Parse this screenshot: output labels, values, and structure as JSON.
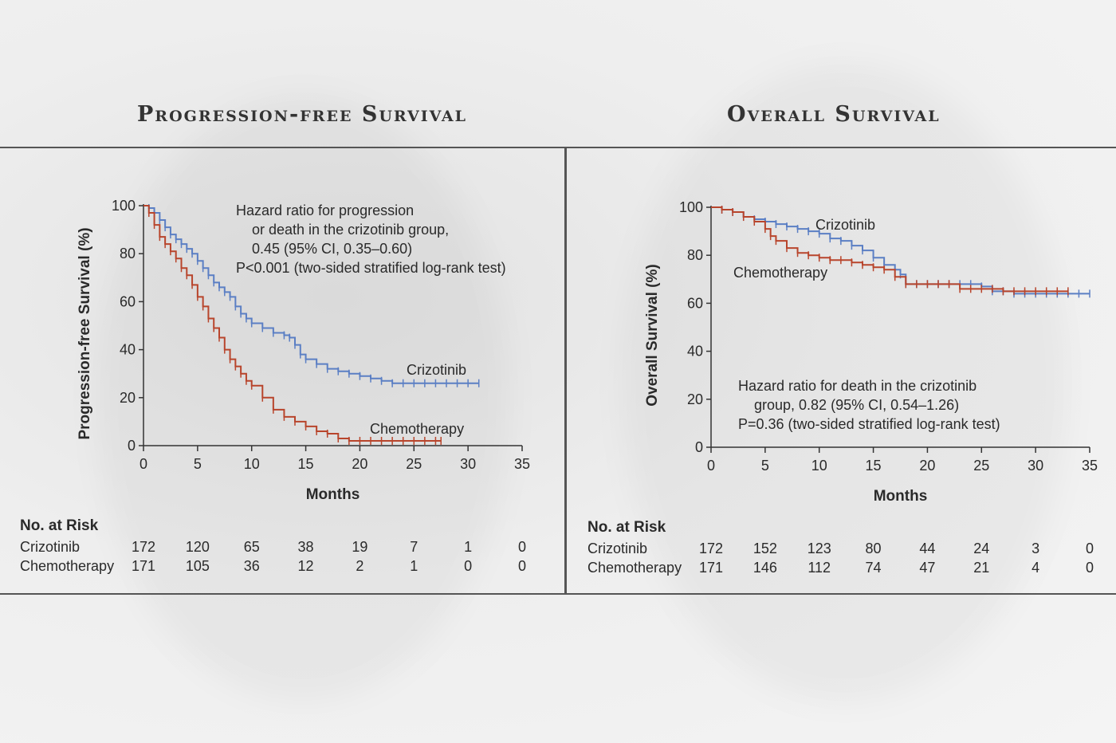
{
  "panels": {
    "left_title": "Progression-free Survival",
    "right_title": "Overall Survival"
  },
  "colors": {
    "crizotinib": "#5b7fc4",
    "chemotherapy": "#b8452c",
    "axis": "#333333"
  },
  "chart_data": [
    {
      "type": "line",
      "title": "Progression-free Survival",
      "xlabel": "Months",
      "ylabel": "Progression-free Survival (%)",
      "xlim": [
        0,
        35
      ],
      "ylim": [
        0,
        100
      ],
      "xticks": [
        0,
        5,
        10,
        15,
        20,
        25,
        30,
        35
      ],
      "yticks": [
        0,
        20,
        40,
        60,
        80,
        100
      ],
      "annotation": [
        "Hazard ratio for progression",
        "or death in the crizotinib group,",
        "0.45 (95% CI, 0.35–0.60)",
        "P<0.001 (two-sided stratified log-rank test)"
      ],
      "series": [
        {
          "name": "Crizotinib",
          "x": [
            0,
            0.5,
            1,
            1.5,
            2,
            2.5,
            3,
            3.5,
            4,
            4.5,
            5,
            5.5,
            6,
            6.5,
            7,
            7.5,
            8,
            8.5,
            9,
            9.5,
            10,
            11,
            12,
            13,
            13.5,
            14,
            14.5,
            15,
            16,
            17,
            18,
            19,
            20,
            21,
            22,
            23,
            24,
            25,
            26,
            27,
            28,
            29,
            30,
            31
          ],
          "values": [
            100,
            99,
            97,
            94,
            91,
            88,
            86,
            84,
            82,
            80,
            77,
            74,
            71,
            68,
            66,
            64,
            62,
            58,
            55,
            53,
            51,
            49,
            47,
            46,
            45,
            42,
            38,
            36,
            34,
            32,
            31,
            30,
            29,
            28,
            27,
            26,
            26,
            26,
            26,
            26,
            26,
            26,
            26,
            26
          ]
        },
        {
          "name": "Chemotherapy",
          "x": [
            0,
            0.5,
            1,
            1.5,
            2,
            2.5,
            3,
            3.5,
            4,
            4.5,
            5,
            5.5,
            6,
            6.5,
            7,
            7.5,
            8,
            8.5,
            9,
            9.5,
            10,
            11,
            12,
            13,
            14,
            15,
            16,
            17,
            18,
            19,
            20,
            21,
            22,
            23,
            24,
            25,
            26,
            27,
            27.5
          ],
          "values": [
            100,
            97,
            92,
            87,
            84,
            81,
            78,
            74,
            71,
            67,
            62,
            58,
            53,
            49,
            45,
            40,
            36,
            33,
            30,
            27,
            25,
            20,
            15,
            12,
            10,
            8,
            6,
            5,
            3,
            2,
            2,
            2,
            2,
            2,
            2,
            2,
            2,
            2,
            2
          ]
        }
      ],
      "series_labels": [
        "Crizotinib",
        "Chemotherapy"
      ],
      "at_risk": {
        "header": "No. at Risk",
        "rows": [
          {
            "label": "Crizotinib",
            "values": [
              "172",
              "120",
              "65",
              "38",
              "19",
              "7",
              "1",
              "0"
            ]
          },
          {
            "label": "Chemotherapy",
            "values": [
              "171",
              "105",
              "36",
              "12",
              "2",
              "1",
              "0",
              "0"
            ]
          }
        ]
      }
    },
    {
      "type": "line",
      "title": "Overall Survival",
      "xlabel": "Months",
      "ylabel": "Overall Survival (%)",
      "xlim": [
        0,
        35
      ],
      "ylim": [
        0,
        100
      ],
      "xticks": [
        0,
        5,
        10,
        15,
        20,
        25,
        30,
        35
      ],
      "yticks": [
        0,
        20,
        40,
        60,
        80,
        100
      ],
      "annotation": [
        "Hazard ratio for death in the crizotinib",
        "group, 0.82 (95% CI, 0.54–1.26)",
        "P=0.36 (two-sided stratified log-rank test)"
      ],
      "series": [
        {
          "name": "Crizotinib",
          "x": [
            0,
            1,
            2,
            3,
            4,
            5,
            6,
            7,
            8,
            9,
            10,
            11,
            12,
            13,
            14,
            15,
            16,
            17,
            17.5,
            18,
            19,
            20,
            21,
            22,
            23,
            24,
            25,
            26,
            27,
            28,
            29,
            30,
            31,
            32,
            33,
            34,
            35
          ],
          "values": [
            100,
            99,
            98,
            96,
            95,
            94,
            93,
            92,
            91,
            90,
            89,
            87,
            86,
            84,
            82,
            79,
            76,
            74,
            72,
            68,
            68,
            68,
            68,
            68,
            68,
            68,
            67,
            65,
            65,
            64,
            64,
            64,
            64,
            64,
            64,
            64,
            64
          ]
        },
        {
          "name": "Chemotherapy",
          "x": [
            0,
            1,
            2,
            3,
            4,
            5,
            5.5,
            6,
            7,
            8,
            9,
            10,
            11,
            12,
            13,
            14,
            15,
            16,
            17,
            18,
            19,
            20,
            21,
            22,
            23,
            24,
            25,
            26,
            27,
            28,
            29,
            30,
            31,
            32,
            33
          ],
          "values": [
            100,
            99,
            98,
            96,
            94,
            91,
            88,
            86,
            83,
            81,
            80,
            79,
            78,
            78,
            77,
            76,
            75,
            74,
            71,
            68,
            68,
            68,
            68,
            68,
            66,
            66,
            66,
            66,
            65,
            65,
            65,
            65,
            65,
            65,
            65
          ]
        }
      ],
      "series_labels": [
        "Crizotinib",
        "Chemotherapy"
      ],
      "at_risk": {
        "header": "No. at Risk",
        "rows": [
          {
            "label": "Crizotinib",
            "values": [
              "172",
              "152",
              "123",
              "80",
              "44",
              "24",
              "3",
              "0"
            ]
          },
          {
            "label": "Chemotherapy",
            "values": [
              "171",
              "146",
              "112",
              "74",
              "47",
              "21",
              "4",
              "0"
            ]
          }
        ]
      }
    }
  ]
}
